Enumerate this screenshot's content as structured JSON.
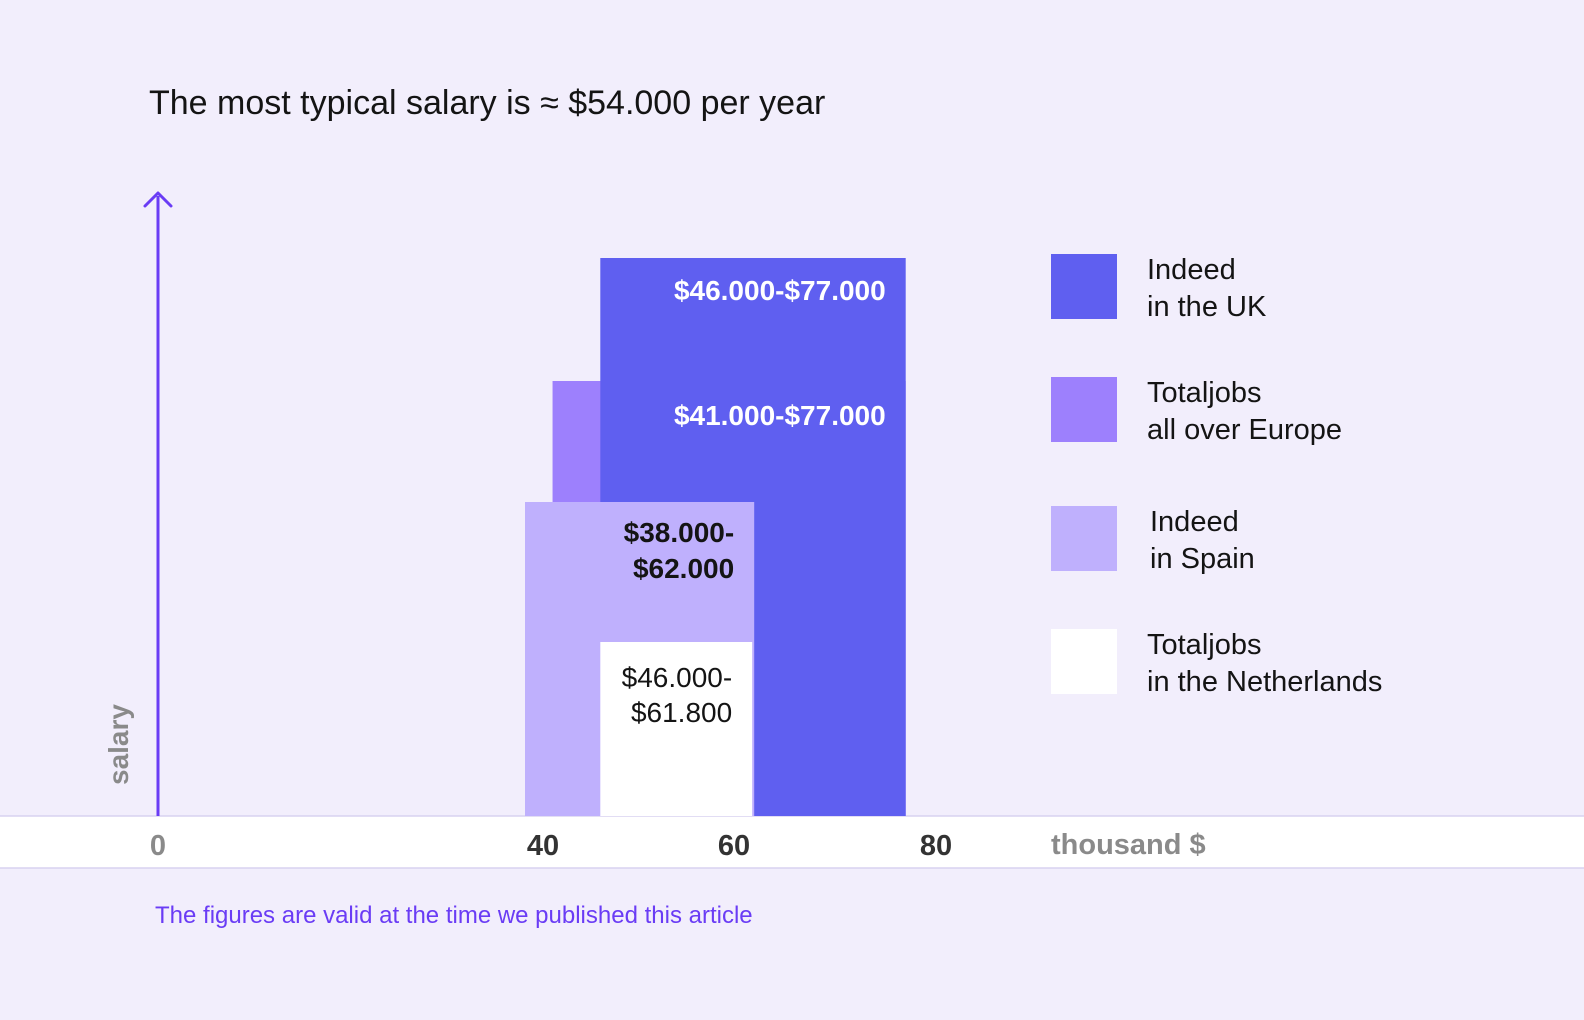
{
  "title": "The most typical salary is ≈ $54.000 per year",
  "footnote": "The figures are valid at the time we published this article",
  "chart_data": {
    "type": "bar",
    "title": "The most typical salary is ≈ $54.000 per year",
    "xlabel": "thousand $",
    "ylabel": "salary",
    "xticks": [
      {
        "value": 0,
        "label": "0"
      },
      {
        "value": 40,
        "label": "40"
      },
      {
        "value": 60,
        "label": "60"
      },
      {
        "value": 80,
        "label": "80"
      }
    ],
    "legend_position": "right",
    "series": [
      {
        "name": "Indeed in the UK",
        "legend_lines": [
          "Indeed",
          "in the UK"
        ],
        "min": 46,
        "max": 77,
        "label_lines": [
          "$46.000-$77.000"
        ],
        "color": "#5f5ff0",
        "text_color": "#ffffff"
      },
      {
        "name": "Totaljobs all over Europe",
        "legend_lines": [
          "Totaljobs",
          "all over Europe"
        ],
        "min": 41,
        "max": 77,
        "label_lines": [
          "$41.000-$77.000"
        ],
        "color": "#9d80fd",
        "text_color": "#ffffff"
      },
      {
        "name": "Indeed in Spain",
        "legend_lines": [
          "Indeed",
          "in Spain"
        ],
        "min": 38,
        "max": 62,
        "label_lines": [
          "$38.000-",
          "$62.000"
        ],
        "color": "#bfb0fd",
        "text_color": "#141414"
      },
      {
        "name": "Totaljobs in the Netherlands",
        "legend_lines": [
          "Totaljobs",
          "in the Netherlands"
        ],
        "min": 46,
        "max": 61.8,
        "label_lines": [
          "$46.000-",
          "$61.800"
        ],
        "color": "#ffffff",
        "text_color": "#141414"
      }
    ]
  },
  "colors": {
    "background": "#f2eefc",
    "axis": "#6a3cf5",
    "axis_band": "#ffffff",
    "tick_dark": "#333333",
    "tick_light": "#8a8a8a"
  }
}
